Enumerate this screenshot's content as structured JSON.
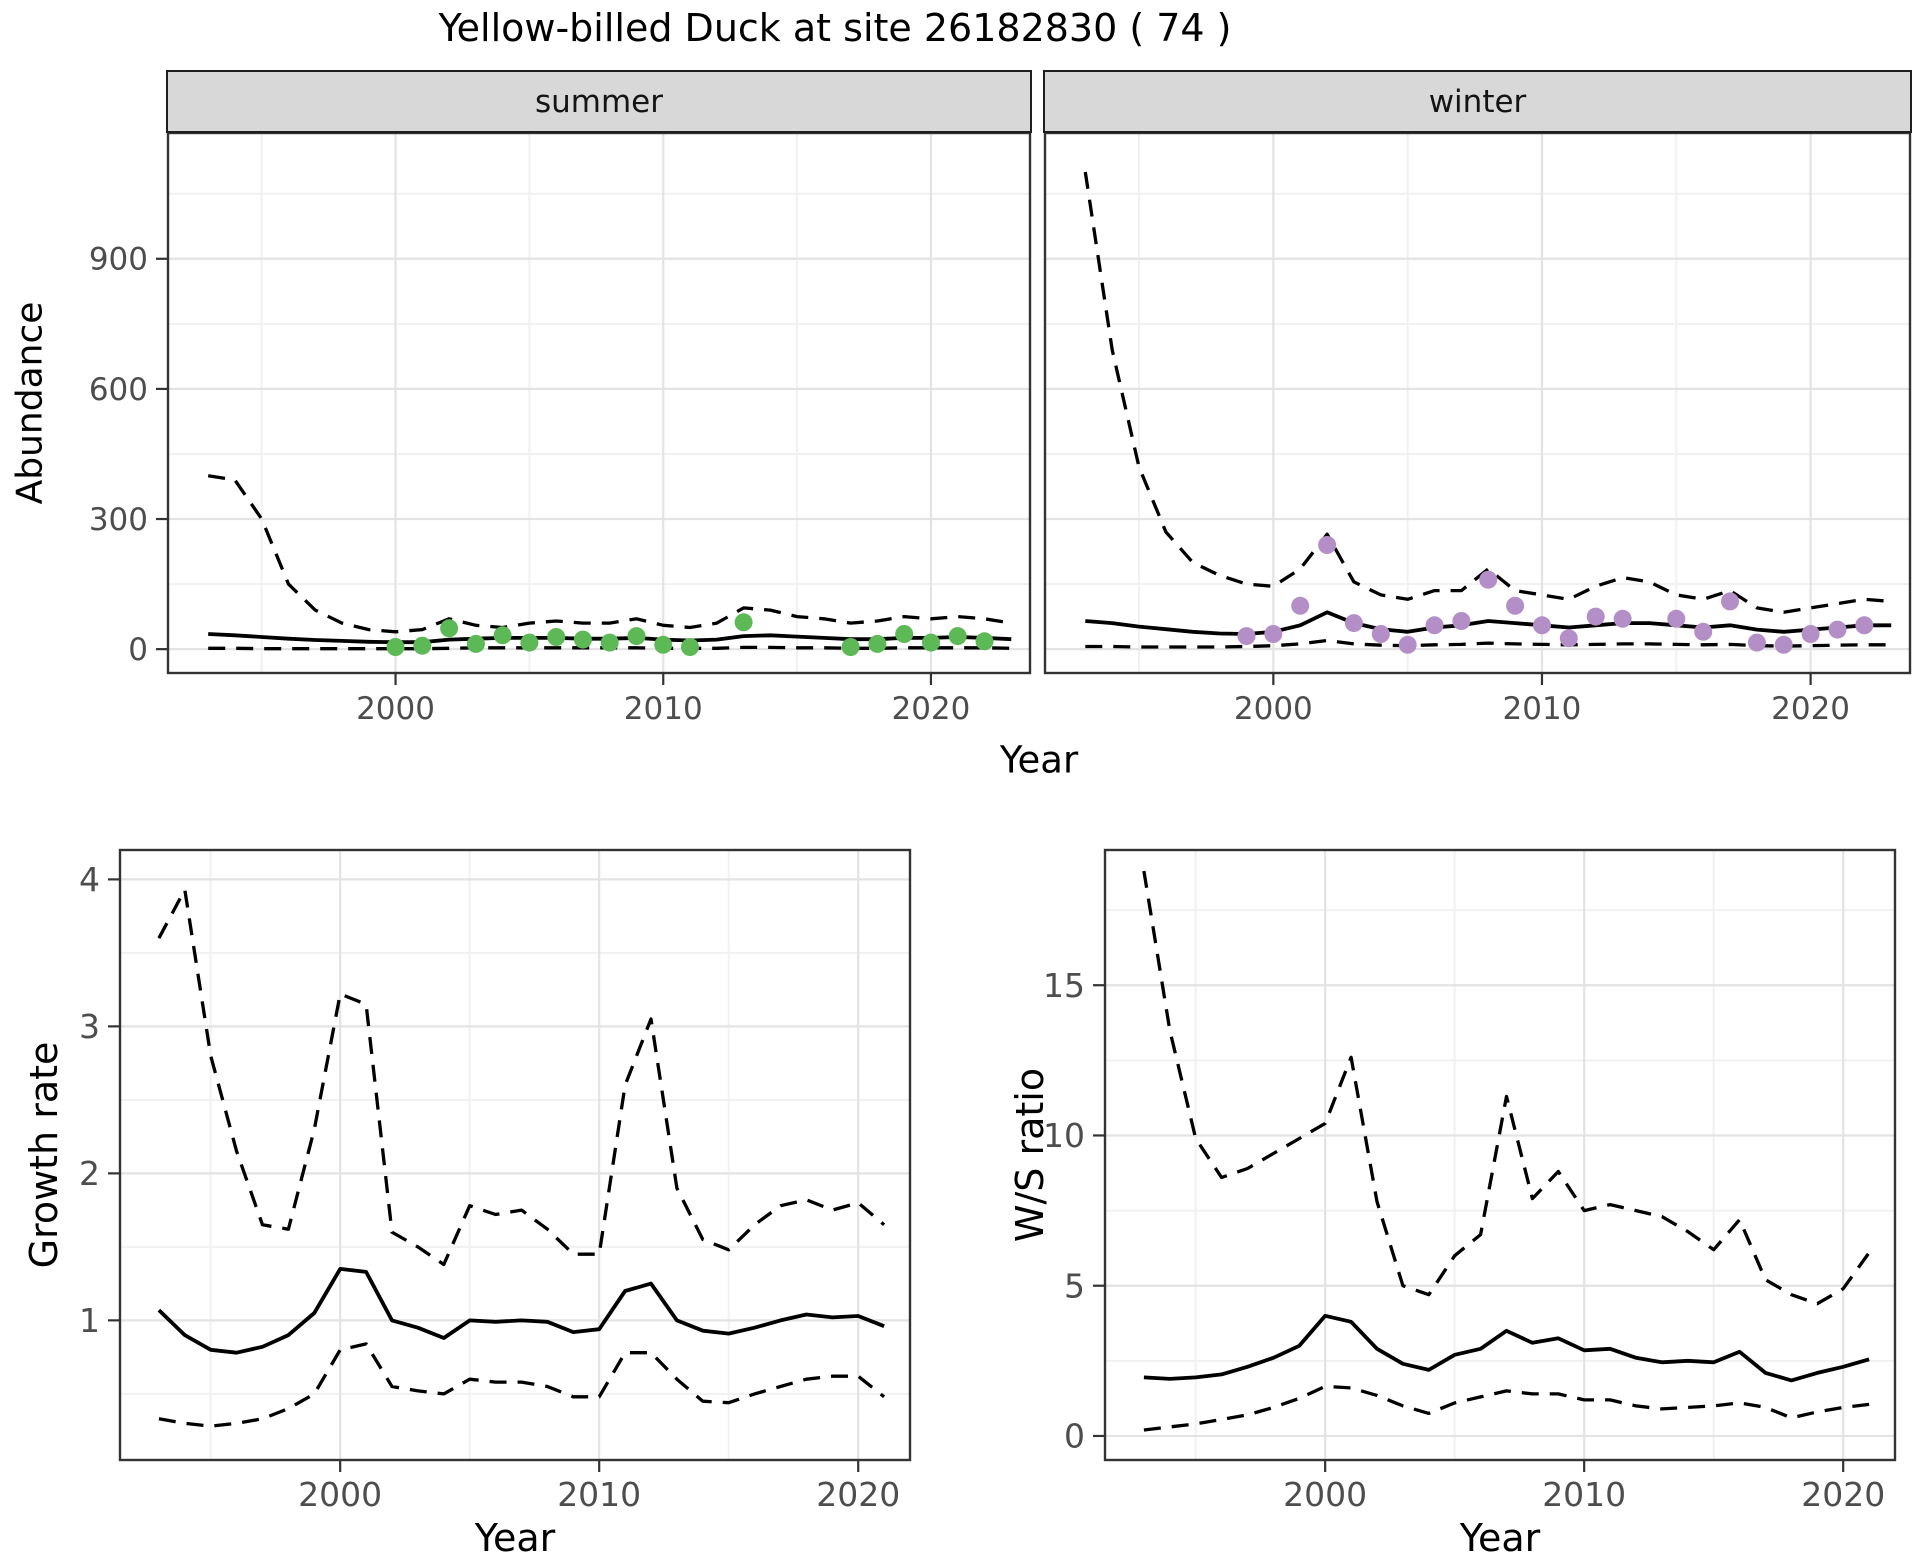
{
  "page": {
    "title": "Yellow-billed Duck at site 26182830 ( 74 )"
  },
  "top": {
    "facet_summer": "summer",
    "facet_winter": "winter",
    "ylabel": "Abundance",
    "xlabel": "Year"
  },
  "bottom": {
    "growth_ylabel": "Growth rate",
    "growth_xlabel": "Year",
    "ws_ylabel": "W/S ratio",
    "ws_xlabel": "Year"
  },
  "colors": {
    "summer_points": "#5cb956",
    "winter_points": "#b48ec6",
    "line": "#000000",
    "grid_major": "#e3e3e3",
    "grid_minor": "#f1f1f1",
    "strip_bg": "#d8d8d8",
    "panel_border": "#333333",
    "axis_text": "#4d4d4d"
  },
  "chart_data": [
    {
      "id": "abundance_summer",
      "type": "line+scatter",
      "facet": "summer",
      "xlabel": "Year",
      "ylabel": "Abundance",
      "xlim": [
        1991.5,
        2023.7
      ],
      "ylim": [
        -55,
        1190
      ],
      "xticks": [
        2000,
        2010,
        2020
      ],
      "yticks": [
        0,
        300,
        600,
        900
      ],
      "xminor": [
        1995,
        2005,
        2015
      ],
      "yminor": [
        150,
        450,
        750,
        1050
      ],
      "grid": "major+minor",
      "legend": "none",
      "years": [
        1993,
        1994,
        1995,
        1996,
        1997,
        1998,
        1999,
        2000,
        2001,
        2002,
        2003,
        2004,
        2005,
        2006,
        2007,
        2008,
        2009,
        2010,
        2011,
        2012,
        2013,
        2014,
        2015,
        2016,
        2017,
        2018,
        2019,
        2020,
        2021,
        2022,
        2023
      ],
      "series": [
        {
          "name": "median",
          "style": "solid",
          "values": [
            35,
            32,
            28,
            24,
            21,
            19,
            17,
            16,
            16,
            22,
            24,
            26,
            26,
            26,
            24,
            24,
            26,
            22,
            20,
            22,
            30,
            32,
            29,
            26,
            23,
            23,
            26,
            26,
            28,
            26,
            23
          ]
        },
        {
          "name": "upper_95ci",
          "style": "dashed",
          "values": [
            400,
            390,
            300,
            150,
            90,
            60,
            45,
            40,
            45,
            70,
            55,
            50,
            60,
            65,
            60,
            60,
            70,
            55,
            50,
            60,
            95,
            90,
            75,
            70,
            60,
            65,
            75,
            70,
            75,
            70,
            60
          ]
        },
        {
          "name": "lower_95ci",
          "style": "dashed",
          "values": [
            2,
            2,
            1,
            1,
            1,
            1,
            1,
            1,
            1,
            2,
            3,
            3,
            3,
            3,
            3,
            3,
            3,
            2,
            2,
            2,
            4,
            4,
            3,
            3,
            2,
            2,
            3,
            3,
            3,
            3,
            2
          ]
        }
      ],
      "points": {
        "name": "observed_counts",
        "color": "#5cb956",
        "x": [
          2000,
          2001,
          2002,
          2003,
          2004,
          2005,
          2006,
          2007,
          2008,
          2009,
          2010,
          2011,
          2013,
          2017,
          2018,
          2019,
          2020,
          2021,
          2022
        ],
        "y": [
          5,
          8,
          48,
          12,
          32,
          15,
          28,
          22,
          15,
          30,
          10,
          5,
          62,
          5,
          12,
          35,
          15,
          30,
          18
        ]
      }
    },
    {
      "id": "abundance_winter",
      "type": "line+scatter",
      "facet": "winter",
      "xlabel": "Year",
      "ylabel": "Abundance",
      "xlim": [
        1991.5,
        2023.7
      ],
      "ylim": [
        -55,
        1190
      ],
      "xticks": [
        2000,
        2010,
        2020
      ],
      "yticks": [
        0,
        300,
        600,
        900
      ],
      "xminor": [
        1995,
        2005,
        2015
      ],
      "yminor": [
        150,
        450,
        750,
        1050
      ],
      "grid": "major+minor",
      "legend": "none",
      "years": [
        1993,
        1994,
        1995,
        1996,
        1997,
        1998,
        1999,
        2000,
        2001,
        2002,
        2003,
        2004,
        2005,
        2006,
        2007,
        2008,
        2009,
        2010,
        2011,
        2012,
        2013,
        2014,
        2015,
        2016,
        2017,
        2018,
        2019,
        2020,
        2021,
        2022,
        2023
      ],
      "series": [
        {
          "name": "median",
          "style": "solid",
          "values": [
            65,
            60,
            52,
            46,
            40,
            36,
            35,
            40,
            55,
            85,
            60,
            46,
            40,
            50,
            55,
            65,
            60,
            55,
            50,
            55,
            60,
            60,
            55,
            50,
            55,
            45,
            40,
            45,
            50,
            55,
            55
          ]
        },
        {
          "name": "upper_95ci",
          "style": "dashed",
          "values": [
            1100,
            690,
            420,
            270,
            200,
            170,
            150,
            145,
            185,
            265,
            155,
            125,
            115,
            135,
            135,
            185,
            135,
            125,
            115,
            145,
            165,
            155,
            125,
            115,
            135,
            95,
            85,
            95,
            105,
            115,
            110
          ]
        },
        {
          "name": "lower_95ci",
          "style": "dashed",
          "values": [
            6,
            6,
            5,
            5,
            5,
            5,
            6,
            8,
            12,
            20,
            12,
            9,
            8,
            10,
            11,
            14,
            12,
            11,
            10,
            11,
            12,
            12,
            11,
            10,
            11,
            8,
            7,
            8,
            9,
            10,
            10
          ]
        }
      ],
      "points": {
        "name": "observed_counts",
        "color": "#b48ec6",
        "x": [
          1999,
          2000,
          2001,
          2002,
          2003,
          2004,
          2005,
          2006,
          2007,
          2008,
          2009,
          2010,
          2011,
          2012,
          2013,
          2015,
          2016,
          2017,
          2018,
          2019,
          2020,
          2021,
          2022
        ],
        "y": [
          30,
          35,
          100,
          240,
          60,
          35,
          10,
          55,
          65,
          160,
          100,
          55,
          25,
          75,
          70,
          70,
          40,
          110,
          15,
          10,
          35,
          45,
          55
        ]
      }
    },
    {
      "id": "growth_rate",
      "type": "line",
      "xlabel": "Year",
      "ylabel": "Growth rate",
      "xlim": [
        1991.5,
        2022
      ],
      "ylim": [
        0.05,
        4.2
      ],
      "xticks": [
        2000,
        2010,
        2020
      ],
      "yticks": [
        1,
        2,
        3,
        4
      ],
      "xminor": [
        1995,
        2005,
        2015
      ],
      "yminor": [
        0.5,
        1.5,
        2.5,
        3.5
      ],
      "grid": "major+minor",
      "legend": "none",
      "years": [
        1993,
        1994,
        1995,
        1996,
        1997,
        1998,
        1999,
        2000,
        2001,
        2002,
        2003,
        2004,
        2005,
        2006,
        2007,
        2008,
        2009,
        2010,
        2011,
        2012,
        2013,
        2014,
        2015,
        2016,
        2017,
        2018,
        2019,
        2020,
        2021
      ],
      "series": [
        {
          "name": "median",
          "style": "solid",
          "values": [
            1.07,
            0.9,
            0.8,
            0.78,
            0.82,
            0.9,
            1.05,
            1.35,
            1.33,
            1.0,
            0.95,
            0.88,
            1.0,
            0.99,
            1.0,
            0.99,
            0.92,
            0.94,
            1.2,
            1.25,
            1.0,
            0.93,
            0.91,
            0.95,
            1.0,
            1.04,
            1.02,
            1.03,
            0.96
          ]
        },
        {
          "name": "upper_95ci",
          "style": "dashed",
          "values": [
            3.6,
            3.93,
            2.8,
            2.15,
            1.65,
            1.62,
            2.3,
            3.22,
            3.15,
            1.6,
            1.5,
            1.38,
            1.78,
            1.72,
            1.75,
            1.62,
            1.45,
            1.45,
            2.6,
            3.05,
            1.9,
            1.55,
            1.48,
            1.65,
            1.78,
            1.82,
            1.75,
            1.8,
            1.65
          ]
        },
        {
          "name": "lower_95ci",
          "style": "dashed",
          "values": [
            0.33,
            0.3,
            0.28,
            0.3,
            0.33,
            0.4,
            0.5,
            0.8,
            0.84,
            0.55,
            0.52,
            0.5,
            0.6,
            0.58,
            0.58,
            0.55,
            0.48,
            0.48,
            0.78,
            0.78,
            0.6,
            0.45,
            0.44,
            0.5,
            0.55,
            0.6,
            0.62,
            0.62,
            0.48
          ]
        }
      ]
    },
    {
      "id": "ws_ratio",
      "type": "line",
      "xlabel": "Year",
      "ylabel": "W/S ratio",
      "xlim": [
        1991.5,
        2022
      ],
      "ylim": [
        -0.8,
        19.5
      ],
      "xticks": [
        2000,
        2010,
        2020
      ],
      "yticks": [
        0,
        5,
        10,
        15
      ],
      "xminor": [
        1995,
        2005,
        2015
      ],
      "yminor": [
        2.5,
        7.5,
        12.5,
        17.5
      ],
      "grid": "major+minor",
      "legend": "none",
      "years": [
        1993,
        1994,
        1995,
        1996,
        1997,
        1998,
        1999,
        2000,
        2001,
        2002,
        2003,
        2004,
        2005,
        2006,
        2007,
        2008,
        2009,
        2010,
        2011,
        2012,
        2013,
        2014,
        2015,
        2016,
        2017,
        2018,
        2019,
        2020,
        2021
      ],
      "series": [
        {
          "name": "median",
          "style": "solid",
          "values": [
            1.95,
            1.9,
            1.95,
            2.05,
            2.3,
            2.6,
            3.0,
            4.0,
            3.8,
            2.9,
            2.4,
            2.2,
            2.7,
            2.9,
            3.5,
            3.1,
            3.25,
            2.85,
            2.9,
            2.6,
            2.45,
            2.5,
            2.45,
            2.8,
            2.1,
            1.85,
            2.1,
            2.3,
            2.55
          ]
        },
        {
          "name": "upper_95ci",
          "style": "dashed",
          "values": [
            18.8,
            13.5,
            9.9,
            8.6,
            8.9,
            9.4,
            9.9,
            10.4,
            12.6,
            7.8,
            5.0,
            4.7,
            6.0,
            6.7,
            11.3,
            7.9,
            8.8,
            7.5,
            7.7,
            7.5,
            7.3,
            6.8,
            6.2,
            7.2,
            5.2,
            4.7,
            4.4,
            4.9,
            6.1
          ]
        },
        {
          "name": "lower_95ci",
          "style": "dashed",
          "values": [
            0.2,
            0.3,
            0.4,
            0.55,
            0.7,
            0.95,
            1.25,
            1.65,
            1.6,
            1.35,
            1.0,
            0.75,
            1.1,
            1.3,
            1.5,
            1.4,
            1.4,
            1.2,
            1.2,
            1.0,
            0.9,
            0.95,
            1.0,
            1.1,
            0.95,
            0.6,
            0.8,
            0.95,
            1.05
          ]
        }
      ]
    }
  ]
}
